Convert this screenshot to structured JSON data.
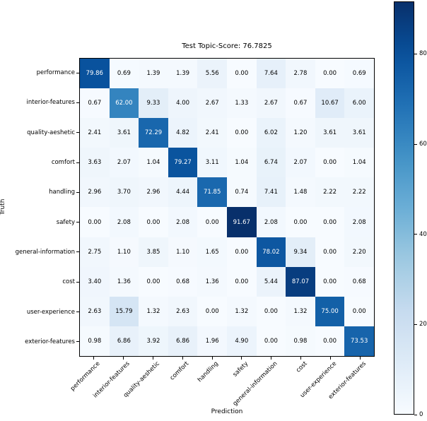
{
  "chart_data": {
    "type": "heatmap",
    "title": "Test Topic-Score: 76.7825",
    "xlabel": "Prediction",
    "ylabel": "Truth",
    "x_categories": [
      "performance",
      "interior-features",
      "quality-aeshetic",
      "comfort",
      "handling",
      "safety",
      "general-information",
      "cost",
      "user-experience",
      "exterior-features"
    ],
    "y_categories": [
      "performance",
      "interior-features",
      "quality-aeshetic",
      "comfort",
      "handling",
      "safety",
      "general-information",
      "cost",
      "user-experience",
      "exterior-features"
    ],
    "matrix": [
      [
        79.86,
        0.69,
        1.39,
        1.39,
        5.56,
        0.0,
        7.64,
        2.78,
        0.0,
        0.69
      ],
      [
        0.67,
        62.0,
        9.33,
        4.0,
        2.67,
        1.33,
        2.67,
        0.67,
        10.67,
        6.0
      ],
      [
        2.41,
        3.61,
        72.29,
        4.82,
        2.41,
        0.0,
        6.02,
        1.2,
        3.61,
        3.61
      ],
      [
        3.63,
        2.07,
        1.04,
        79.27,
        3.11,
        1.04,
        6.74,
        2.07,
        0.0,
        1.04
      ],
      [
        2.96,
        3.7,
        2.96,
        4.44,
        71.85,
        0.74,
        7.41,
        1.48,
        2.22,
        2.22
      ],
      [
        0.0,
        2.08,
        0.0,
        2.08,
        0.0,
        91.67,
        2.08,
        0.0,
        0.0,
        2.08
      ],
      [
        2.75,
        1.1,
        3.85,
        1.1,
        1.65,
        0.0,
        78.02,
        9.34,
        0.0,
        2.2
      ],
      [
        3.4,
        1.36,
        0.0,
        0.68,
        1.36,
        0.0,
        5.44,
        87.07,
        0.0,
        0.68
      ],
      [
        2.63,
        15.79,
        1.32,
        2.63,
        0.0,
        1.32,
        0.0,
        1.32,
        75.0,
        0.0
      ],
      [
        0.98,
        6.86,
        3.92,
        6.86,
        1.96,
        4.9,
        0.0,
        0.98,
        0.0,
        73.53
      ]
    ],
    "value_format_decimals": 2,
    "vmin": 0,
    "vmax": 91.67,
    "colormap": "Blues",
    "colormap_stops": [
      [
        0.0,
        "#f7fbff"
      ],
      [
        0.125,
        "#deebf7"
      ],
      [
        0.25,
        "#c6dbef"
      ],
      [
        0.375,
        "#9ecae1"
      ],
      [
        0.5,
        "#6baed6"
      ],
      [
        0.625,
        "#4292c6"
      ],
      [
        0.75,
        "#2171b5"
      ],
      [
        0.875,
        "#08519c"
      ],
      [
        1.0,
        "#08306b"
      ]
    ],
    "cell_text_color_light_bg": "#000000",
    "cell_text_color_dark_bg": "#ffffff",
    "colorbar_ticks": [
      0,
      20,
      40,
      60,
      80
    ],
    "colorbar_position": "right",
    "grid": false,
    "axis_color": "#000000"
  }
}
